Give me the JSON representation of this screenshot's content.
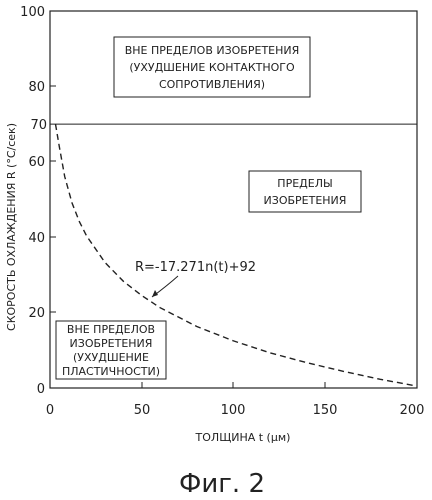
{
  "chart_data": {
    "type": "line",
    "xlabel": "ТОЛЩИНА t (μм)",
    "ylabel": "СКОРОСТЬ ОХЛАЖДЕНИЯ R (°С/сек)",
    "xlim": [
      0,
      200
    ],
    "ylim": [
      0,
      100
    ],
    "xticks": [
      "0",
      "50",
      "100",
      "150",
      "200"
    ],
    "yticks": [
      "0",
      "20",
      "40",
      "60",
      "70",
      "80",
      "100"
    ],
    "grid": false,
    "caption": "Фиг. 2",
    "boundary_line": {
      "y": 70
    },
    "curve": {
      "formula_label": "R=-17.271n(t)+92",
      "x": [
        5,
        8,
        12,
        16,
        20,
        30,
        40,
        50,
        60,
        80,
        100,
        120,
        140,
        160,
        180,
        200
      ],
      "y": [
        64.2,
        56.1,
        49.1,
        44.1,
        40.3,
        33.3,
        28.3,
        24.5,
        21.3,
        16.3,
        12.5,
        9.3,
        6.7,
        4.4,
        2.3,
        0.5
      ]
    },
    "regions": [
      {
        "lines": [
          "ВНЕ ПРЕДЕЛОВ ИЗОБРЕТЕНИЯ",
          "(УХУДШЕНИЕ КОНТАКТНОГО",
          "СОПРОТИВЛЕНИЯ)"
        ]
      },
      {
        "lines": [
          "ПРЕДЕЛЫ",
          "ИЗОБРЕТЕНИЯ"
        ]
      },
      {
        "lines": [
          "ВНЕ ПРЕДЕЛОВ",
          "ИЗОБРЕТЕНИЯ",
          "(УХУДШЕНИЕ",
          "ПЛАСТИЧНОСТИ)"
        ]
      }
    ]
  }
}
